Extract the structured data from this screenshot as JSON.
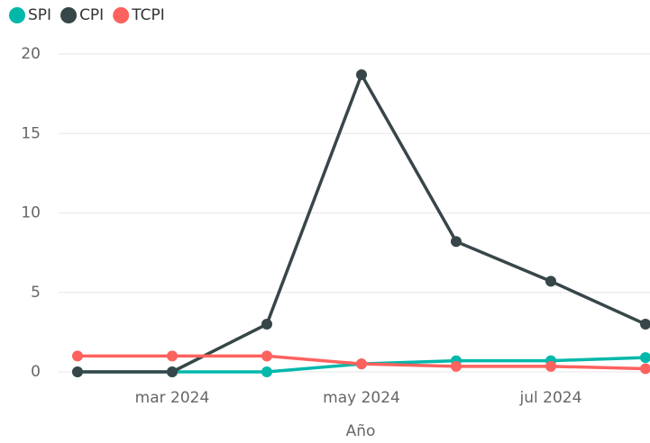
{
  "chart_data": {
    "type": "line",
    "x_label": "Año",
    "categories": [
      null,
      "mar 2024",
      null,
      "may 2024",
      null,
      "jul 2024",
      null
    ],
    "series": [
      {
        "name": "SPI",
        "color": "#01B8AA",
        "values": [
          0,
          0,
          0,
          0.5,
          0.7,
          0.7,
          0.9
        ]
      },
      {
        "name": "CPI",
        "color": "#374649",
        "values": [
          0,
          0,
          3.0,
          18.7,
          8.2,
          5.7,
          3.0
        ]
      },
      {
        "name": "TCPI",
        "color": "#FD625E",
        "values": [
          1.0,
          1.0,
          1.0,
          0.5,
          0.35,
          0.35,
          0.2
        ]
      }
    ],
    "ylim": [
      0,
      20
    ],
    "yticks": [
      0,
      5,
      10,
      15,
      20
    ],
    "grid": true
  }
}
